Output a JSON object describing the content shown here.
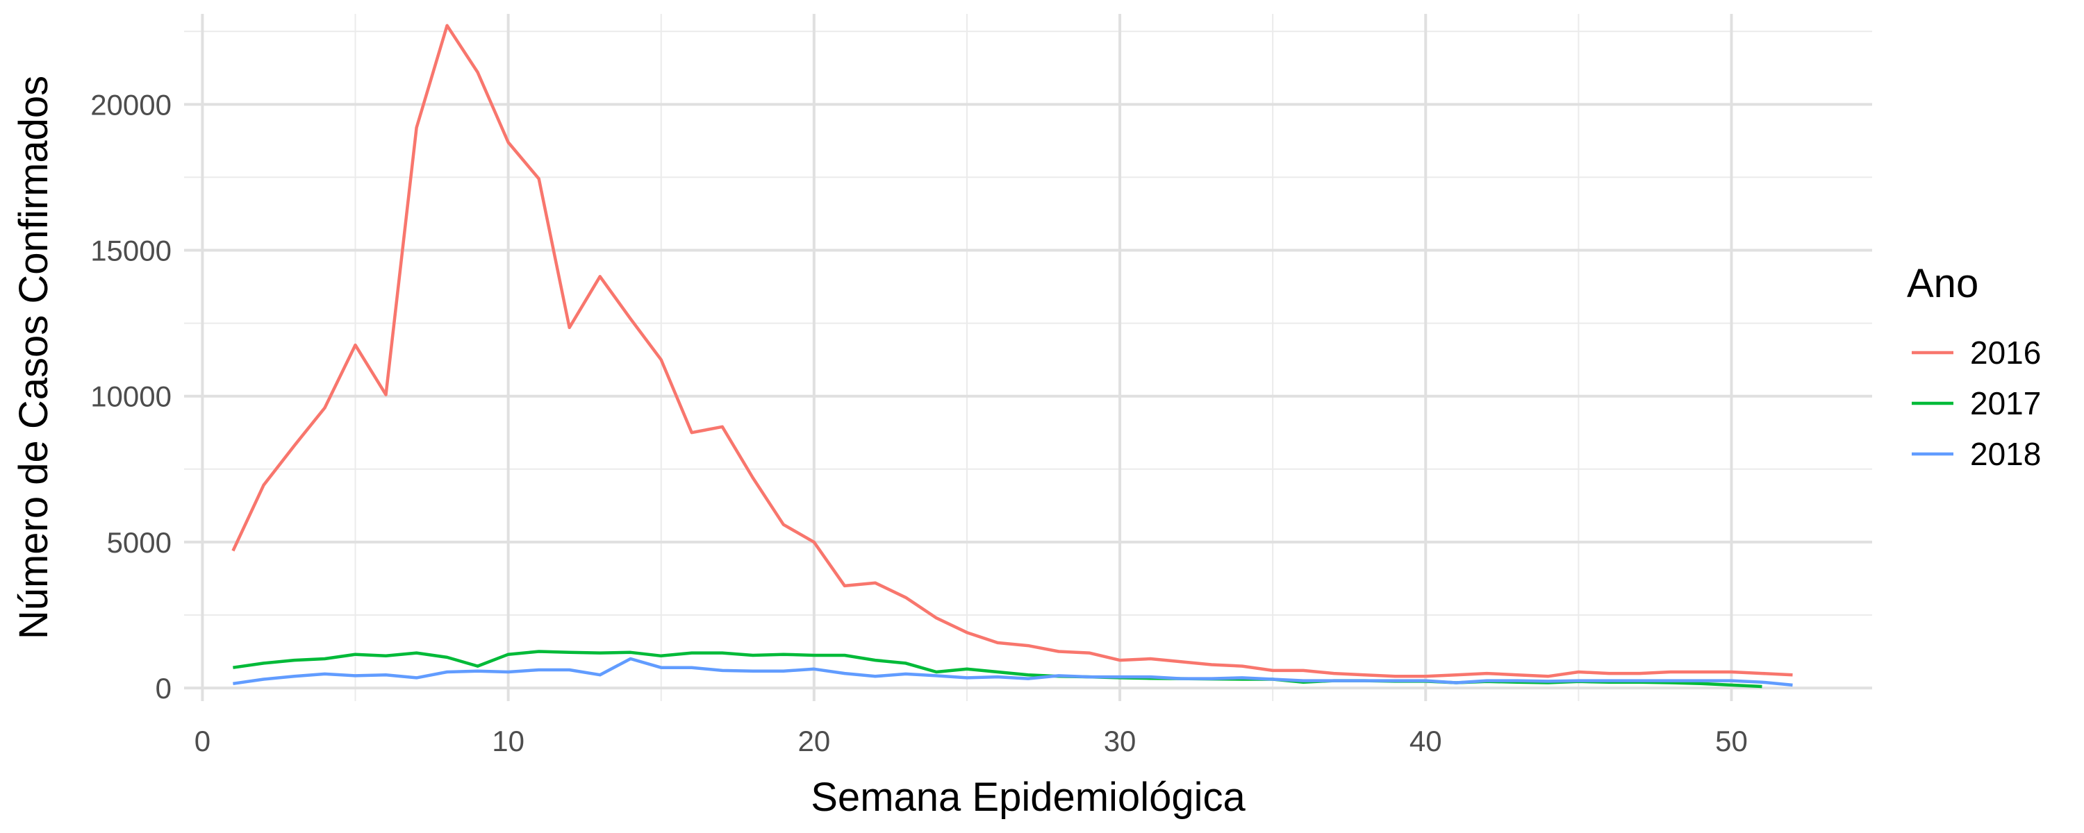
{
  "chart_data": {
    "type": "line",
    "title": "",
    "xlabel": "Semana Epidemiológica",
    "ylabel": "Número de Casos Confirmados",
    "xlim": [
      -0.6,
      54.6
    ],
    "ylim": [
      -450,
      23100
    ],
    "x_ticks": [
      0,
      10,
      20,
      30,
      40,
      50
    ],
    "x_tick_labels": [
      "0",
      "10",
      "20",
      "30",
      "40",
      "50"
    ],
    "y_ticks": [
      0,
      5000,
      10000,
      15000,
      20000
    ],
    "y_tick_labels": [
      "0",
      "5000",
      "10000",
      "15000",
      "20000"
    ],
    "grid": true,
    "legend": {
      "title": "Ano",
      "placement": "right"
    },
    "series": [
      {
        "name": "2016",
        "color": "#F8766D",
        "x": [
          1,
          2,
          3,
          4,
          5,
          6,
          7,
          8,
          9,
          10,
          11,
          12,
          13,
          14,
          15,
          16,
          17,
          18,
          19,
          20,
          21,
          22,
          23,
          24,
          25,
          26,
          27,
          28,
          29,
          30,
          31,
          32,
          33,
          34,
          35,
          36,
          37,
          38,
          39,
          40,
          41,
          42,
          43,
          44,
          45,
          46,
          47,
          48,
          49,
          50,
          51,
          52
        ],
        "values": [
          4700,
          6950,
          8300,
          9600,
          11750,
          10050,
          19200,
          22700,
          21100,
          18700,
          17450,
          12350,
          14100,
          12650,
          11250,
          8750,
          8950,
          7200,
          5600,
          5000,
          3500,
          3600,
          3100,
          2400,
          1900,
          1550,
          1450,
          1250,
          1200,
          950,
          1000,
          900,
          800,
          750,
          600,
          600,
          500,
          450,
          400,
          400,
          450,
          500,
          450,
          400,
          550,
          500,
          500,
          550,
          550,
          550,
          500,
          450
        ]
      },
      {
        "name": "2017",
        "color": "#00BA38",
        "x": [
          1,
          2,
          3,
          4,
          5,
          6,
          7,
          8,
          9,
          10,
          11,
          12,
          13,
          14,
          15,
          16,
          17,
          18,
          19,
          20,
          21,
          22,
          23,
          24,
          25,
          26,
          27,
          28,
          29,
          30,
          31,
          32,
          33,
          34,
          35,
          36,
          37,
          38,
          39,
          40,
          41,
          42,
          43,
          44,
          45,
          46,
          47,
          48,
          49,
          50,
          51
        ],
        "values": [
          700,
          850,
          950,
          1000,
          1150,
          1100,
          1200,
          1050,
          750,
          1150,
          1250,
          1220,
          1200,
          1220,
          1100,
          1200,
          1200,
          1120,
          1150,
          1120,
          1120,
          950,
          850,
          550,
          650,
          550,
          450,
          400,
          380,
          350,
          330,
          320,
          310,
          300,
          300,
          200,
          250,
          250,
          230,
          230,
          180,
          220,
          200,
          180,
          220,
          200,
          200,
          180,
          150,
          100,
          50
        ]
      },
      {
        "name": "2018",
        "color": "#619CFF",
        "x": [
          1,
          2,
          3,
          4,
          5,
          6,
          7,
          8,
          9,
          10,
          11,
          12,
          13,
          14,
          15,
          16,
          17,
          18,
          19,
          20,
          21,
          22,
          23,
          24,
          25,
          26,
          27,
          28,
          29,
          30,
          31,
          32,
          33,
          34,
          35,
          36,
          37,
          38,
          39,
          40,
          41,
          42,
          43,
          44,
          45,
          46,
          47,
          48,
          49,
          50,
          51,
          52
        ],
        "values": [
          150,
          300,
          400,
          480,
          420,
          450,
          350,
          550,
          580,
          550,
          620,
          620,
          450,
          1000,
          700,
          700,
          600,
          580,
          580,
          650,
          500,
          400,
          480,
          420,
          350,
          380,
          320,
          420,
          380,
          380,
          380,
          320,
          320,
          350,
          300,
          250,
          250,
          250,
          250,
          250,
          180,
          250,
          250,
          230,
          250,
          250,
          250,
          250,
          250,
          250,
          200,
          100
        ]
      }
    ]
  }
}
